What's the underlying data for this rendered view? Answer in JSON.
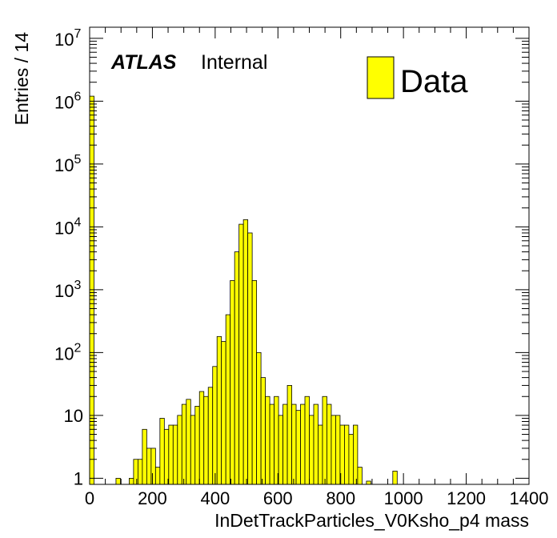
{
  "chart_data": {
    "type": "bar",
    "histogram": true,
    "xlabel": "InDetTrackParticles_V0Ksho_p4 mass",
    "ylabel": "Entries / 14",
    "xlim": [
      0,
      1400
    ],
    "ylim": [
      0.8,
      15000000
    ],
    "yscale": "log",
    "bin_width": 14,
    "x_ticks": [
      "0",
      "200",
      "400",
      "600",
      "800",
      "1000",
      "1200",
      "1400"
    ],
    "y_ticks": [
      {
        "value": 1,
        "label": "1"
      },
      {
        "value": 10,
        "label": "10"
      },
      {
        "value": 100,
        "base": "10",
        "exp": "2"
      },
      {
        "value": 1000,
        "base": "10",
        "exp": "3"
      },
      {
        "value": 10000,
        "base": "10",
        "exp": "4"
      },
      {
        "value": 100000,
        "base": "10",
        "exp": "5"
      },
      {
        "value": 1000000,
        "base": "10",
        "exp": "6"
      },
      {
        "value": 10000000,
        "base": "10",
        "exp": "7"
      }
    ],
    "atlas_label": "ATLAS",
    "atlas_sublabel": "Internal",
    "legend_position": "top-right",
    "series": [
      {
        "name": "Data",
        "color": "#ffff00",
        "edge_color": "#000000",
        "bins_left_edge": [
          0,
          84,
          126,
          140,
          154,
          168,
          182,
          196,
          210,
          224,
          238,
          252,
          266,
          280,
          294,
          308,
          322,
          336,
          350,
          364,
          378,
          392,
          406,
          420,
          434,
          448,
          462,
          476,
          490,
          504,
          518,
          532,
          546,
          560,
          574,
          588,
          602,
          616,
          630,
          644,
          658,
          672,
          686,
          700,
          714,
          728,
          742,
          756,
          770,
          784,
          798,
          812,
          826,
          840,
          854,
          882,
          966
        ],
        "values": [
          1200000,
          1,
          1,
          2,
          2,
          6,
          3,
          3,
          1.5,
          9,
          6,
          7,
          7,
          10,
          15,
          18,
          10,
          14,
          24,
          20,
          28,
          60,
          180,
          150,
          400,
          1400,
          4000,
          11000,
          13000,
          8000,
          1400,
          100,
          40,
          20,
          15,
          20,
          10,
          15,
          30,
          15,
          12,
          15,
          20,
          10,
          15,
          7,
          20,
          15,
          10,
          10,
          7,
          7,
          5,
          7,
          1.5,
          0.9,
          1.3
        ]
      }
    ]
  }
}
